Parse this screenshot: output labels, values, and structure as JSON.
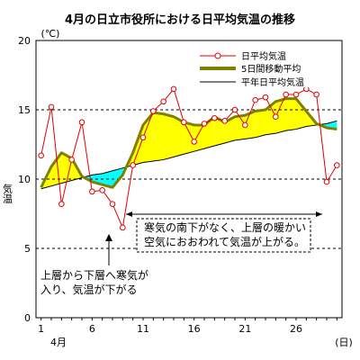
{
  "chart_data": {
    "type": "line",
    "title": "4月の日立市役所における日平均気温の推移",
    "ylabel": "気温",
    "y_unit": "(℃)",
    "x_unit": "(日)",
    "x_month_label": "4月",
    "xlim": [
      1,
      30
    ],
    "ylim": [
      0,
      20
    ],
    "yticks": [
      0,
      5,
      10,
      15,
      20
    ],
    "xticks": [
      1,
      6,
      11,
      16,
      21,
      26
    ],
    "grid": "y dashed at 5, 10, 15",
    "legend_position": "top-right",
    "fill_above_color": "#ffff00",
    "fill_below_color": "#00ffff",
    "series": [
      {
        "name": "日平均気温",
        "color": "#e00000",
        "style": "line with hollow circle markers",
        "x": [
          1,
          2,
          3,
          4,
          5,
          6,
          7,
          8,
          9,
          10,
          11,
          12,
          13,
          14,
          15,
          16,
          17,
          18,
          19,
          20,
          21,
          22,
          23,
          24,
          25,
          26,
          27,
          28,
          29,
          30
        ],
        "values": [
          11.7,
          15.2,
          8.2,
          11.4,
          14.1,
          9.1,
          9.2,
          8.2,
          6.5,
          11.0,
          13.0,
          14.9,
          15.6,
          16.5,
          14.1,
          12.7,
          14.0,
          14.4,
          14.2,
          15.0,
          13.9,
          15.7,
          15.9,
          14.5,
          16.1,
          16.1,
          16.5,
          16.1,
          9.8,
          11.0
        ]
      },
      {
        "name": "5日間移動平均",
        "color": "#808000",
        "style": "thick line",
        "x": [
          1,
          2,
          3,
          4,
          5,
          6,
          7,
          8,
          9,
          10,
          11,
          12,
          13,
          14,
          15,
          16,
          17,
          18,
          19,
          20,
          21,
          22,
          23,
          24,
          25,
          26,
          27,
          28,
          29,
          30
        ],
        "values": [
          9.4,
          10.9,
          11.9,
          11.5,
          10.2,
          9.8,
          9.6,
          9.4,
          10.3,
          11.9,
          13.9,
          14.8,
          14.7,
          14.5,
          14.1,
          13.9,
          13.9,
          14.5,
          14.1,
          14.5,
          14.6,
          14.9,
          15.0,
          15.6,
          15.8,
          15.8,
          14.9,
          14.0,
          13.7,
          13.6
        ]
      },
      {
        "name": "平年日平均気温",
        "color": "#000000",
        "style": "thin line",
        "x": [
          1,
          2,
          3,
          4,
          5,
          6,
          7,
          8,
          9,
          10,
          11,
          12,
          13,
          14,
          15,
          16,
          17,
          18,
          19,
          20,
          21,
          22,
          23,
          24,
          25,
          26,
          27,
          28,
          29,
          30
        ],
        "values": [
          9.3,
          9.5,
          9.7,
          9.9,
          10.1,
          10.3,
          10.4,
          10.6,
          10.8,
          11.0,
          11.2,
          11.3,
          11.4,
          11.6,
          11.8,
          12.0,
          12.2,
          12.4,
          12.6,
          12.8,
          12.9,
          13.0,
          13.2,
          13.3,
          13.5,
          13.6,
          13.8,
          13.9,
          14.0,
          14.2
        ]
      }
    ],
    "annotations": [
      {
        "lines": [
          "寒気の南下がなく、上層の暖かい",
          "空気におおわれて気温が上がる。"
        ],
        "span": [
          9,
          29
        ]
      },
      {
        "lines": [
          "上層から下層へ寒気が",
          "入り、気温が下がる"
        ],
        "arrow_to_day": 7.5
      }
    ]
  }
}
